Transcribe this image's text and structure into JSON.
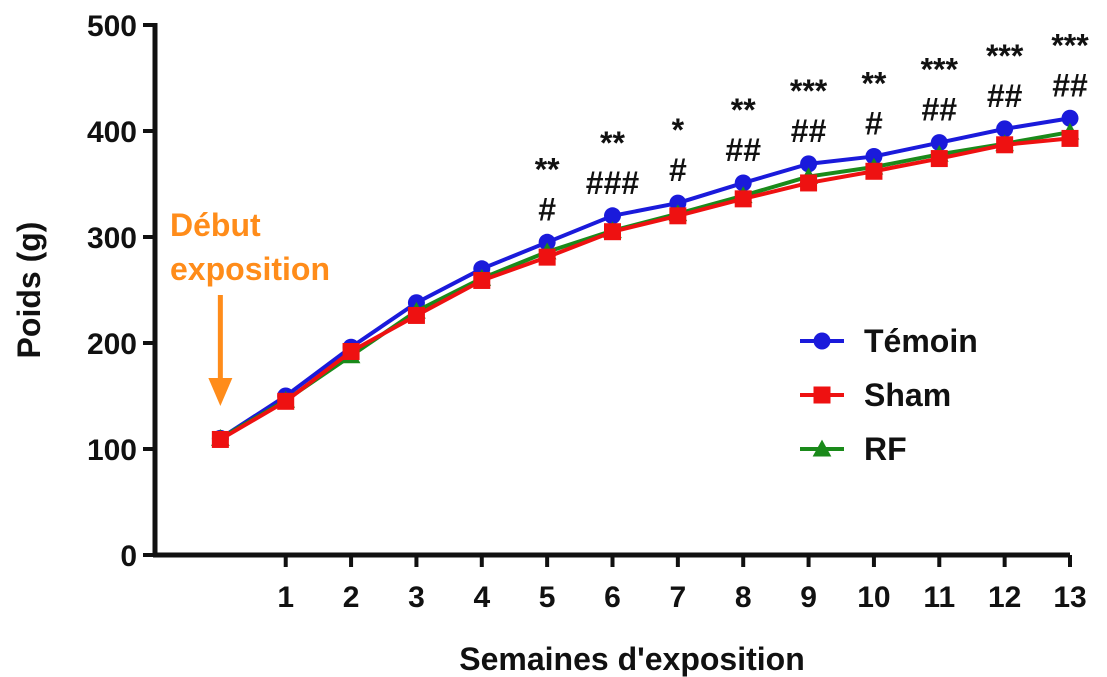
{
  "chart_data": {
    "type": "line",
    "title": "",
    "xlabel": "Semaines d'exposition",
    "ylabel": "Poids (g)",
    "ylim": [
      0,
      500
    ],
    "yticks": [
      0,
      100,
      200,
      300,
      400,
      500
    ],
    "xlim": [
      -1,
      13
    ],
    "xticks": [
      1,
      2,
      3,
      4,
      5,
      6,
      7,
      8,
      9,
      10,
      11,
      12,
      13
    ],
    "grid": false,
    "legend_position": "right",
    "x": [
      0,
      1,
      2,
      3,
      4,
      5,
      6,
      7,
      8,
      9,
      10,
      11,
      12,
      13
    ],
    "series": [
      {
        "name": "Témoin",
        "color": "#1a1adb",
        "marker": "circle",
        "values": [
          110,
          150,
          196,
          238,
          270,
          295,
          320,
          332,
          351,
          369,
          376,
          389,
          402,
          412
        ]
      },
      {
        "name": "RF",
        "color": "#1a8a1a",
        "marker": "triangle",
        "values": [
          110,
          146,
          188,
          230,
          261,
          286,
          306,
          322,
          339,
          357,
          366,
          378,
          388,
          399
        ]
      },
      {
        "name": "Sham",
        "color": "#ee1111",
        "marker": "square",
        "values": [
          109,
          145,
          192,
          226,
          259,
          281,
          305,
          320,
          336,
          351,
          362,
          374,
          387,
          393
        ]
      }
    ],
    "significance": [
      {
        "x": 5,
        "stars": "**",
        "hash": "#"
      },
      {
        "x": 6,
        "stars": "**",
        "hash": "###"
      },
      {
        "x": 7,
        "stars": "*",
        "hash": "#"
      },
      {
        "x": 8,
        "stars": "**",
        "hash": "##"
      },
      {
        "x": 9,
        "stars": "***",
        "hash": "##"
      },
      {
        "x": 10,
        "stars": "**",
        "hash": "#"
      },
      {
        "x": 11,
        "stars": "***",
        "hash": "##"
      },
      {
        "x": 12,
        "stars": "***",
        "hash": "##"
      },
      {
        "x": 13,
        "stars": "***",
        "hash": "##"
      }
    ],
    "annotation": {
      "lines": [
        "Début",
        "exposition"
      ],
      "color": "#ff8c1a",
      "arrow_x": 0
    }
  }
}
